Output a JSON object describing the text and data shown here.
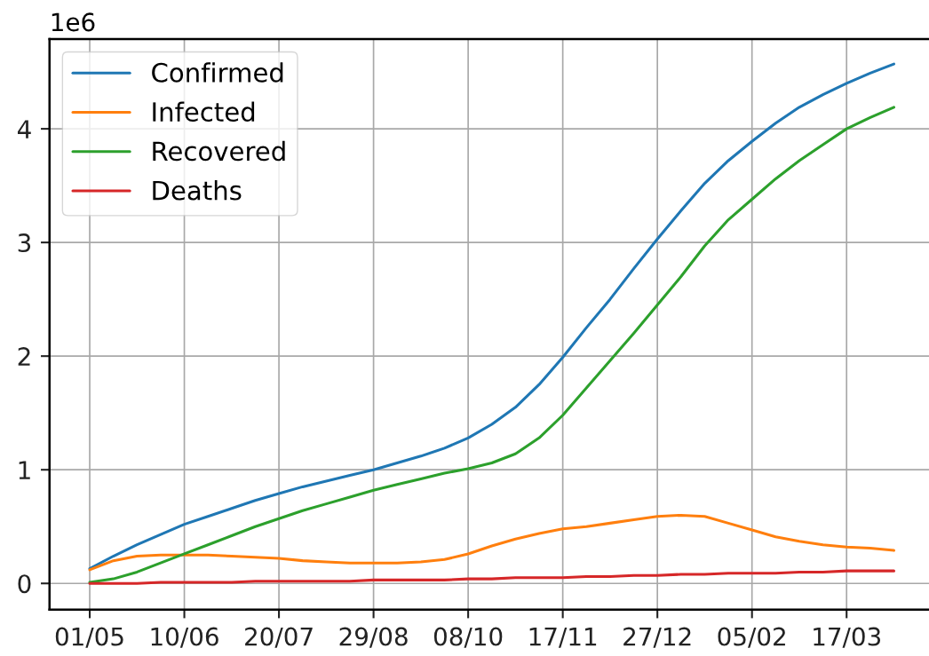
{
  "chart_data": {
    "type": "line",
    "annotations": [
      "1e6"
    ],
    "categories": [
      "01/05",
      null,
      null,
      null,
      "10/06",
      null,
      null,
      null,
      "20/07",
      null,
      null,
      null,
      "29/08",
      null,
      null,
      null,
      "08/10",
      null,
      null,
      null,
      "17/11",
      null,
      null,
      null,
      "27/12",
      null,
      null,
      null,
      "05/02",
      null,
      null,
      null,
      "17/03",
      null,
      null
    ],
    "series": [
      {
        "name": "Confirmed",
        "color": "#1f77b4",
        "values": [
          0.13,
          0.24,
          0.34,
          0.43,
          0.52,
          0.59,
          0.66,
          0.73,
          0.79,
          0.85,
          0.9,
          0.95,
          1.0,
          1.06,
          1.12,
          1.19,
          1.28,
          1.4,
          1.55,
          1.75,
          1.99,
          2.25,
          2.5,
          2.77,
          3.03,
          3.28,
          3.52,
          3.72,
          3.89,
          4.05,
          4.19,
          4.3,
          4.4,
          4.49,
          4.57
        ]
      },
      {
        "name": "Infected",
        "color": "#ff7f0e",
        "values": [
          0.12,
          0.2,
          0.24,
          0.25,
          0.25,
          0.25,
          0.24,
          0.23,
          0.22,
          0.2,
          0.19,
          0.18,
          0.18,
          0.18,
          0.19,
          0.21,
          0.26,
          0.33,
          0.39,
          0.44,
          0.48,
          0.5,
          0.53,
          0.56,
          0.59,
          0.6,
          0.59,
          0.53,
          0.47,
          0.41,
          0.37,
          0.34,
          0.32,
          0.31,
          0.29
        ]
      },
      {
        "name": "Recovered",
        "color": "#2ca02c",
        "values": [
          0.01,
          0.04,
          0.1,
          0.18,
          0.26,
          0.34,
          0.42,
          0.5,
          0.57,
          0.64,
          0.7,
          0.76,
          0.82,
          0.87,
          0.92,
          0.97,
          1.01,
          1.06,
          1.14,
          1.28,
          1.48,
          1.72,
          1.96,
          2.2,
          2.45,
          2.7,
          2.97,
          3.2,
          3.38,
          3.56,
          3.72,
          3.86,
          4.0,
          4.1,
          4.19
        ]
      },
      {
        "name": "Deaths",
        "color": "#d62728",
        "values": [
          0.0,
          0.0,
          0.0,
          0.01,
          0.01,
          0.01,
          0.01,
          0.02,
          0.02,
          0.02,
          0.02,
          0.02,
          0.03,
          0.03,
          0.03,
          0.03,
          0.04,
          0.04,
          0.05,
          0.05,
          0.05,
          0.06,
          0.06,
          0.07,
          0.07,
          0.08,
          0.08,
          0.09,
          0.09,
          0.09,
          0.1,
          0.1,
          0.11,
          0.11,
          0.11
        ]
      }
    ],
    "ylim": [
      -0.23,
      4.79
    ],
    "yticks": [
      0,
      1,
      2,
      3,
      4
    ],
    "grid": true,
    "legend": "top left"
  }
}
